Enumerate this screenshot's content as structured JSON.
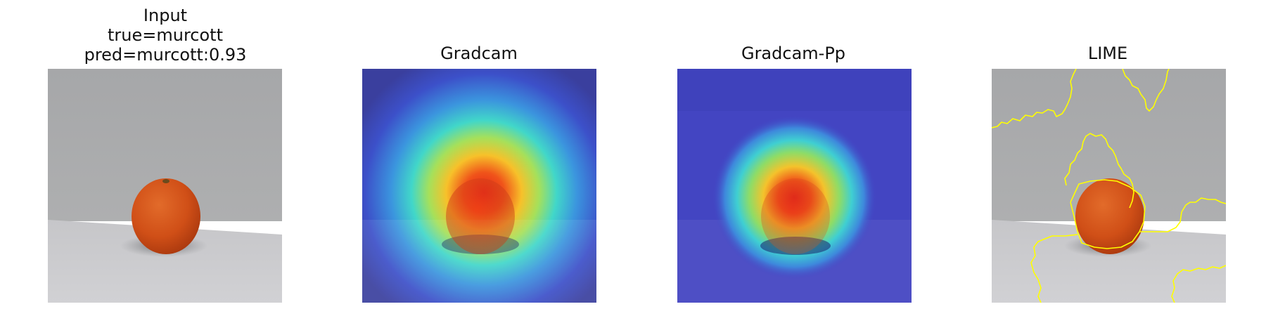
{
  "figure": {
    "panels": [
      {
        "id": "input",
        "title_lines": [
          "Input",
          "true=murcott",
          "pred=murcott:0.93"
        ]
      },
      {
        "id": "gradcam",
        "title_lines": [
          "Gradcam"
        ]
      },
      {
        "id": "gradcam-pp",
        "title_lines": [
          "Gradcam-Pp"
        ]
      },
      {
        "id": "lime",
        "title_lines": [
          "LIME"
        ]
      }
    ],
    "colors": {
      "wall": "#a9aaab",
      "table": "#c3c3c6",
      "fruit": "#d7541a",
      "overlay_blue": "#3a43c9",
      "heat_red": "#e5261b",
      "lime_boundary": "#ffff00"
    }
  }
}
